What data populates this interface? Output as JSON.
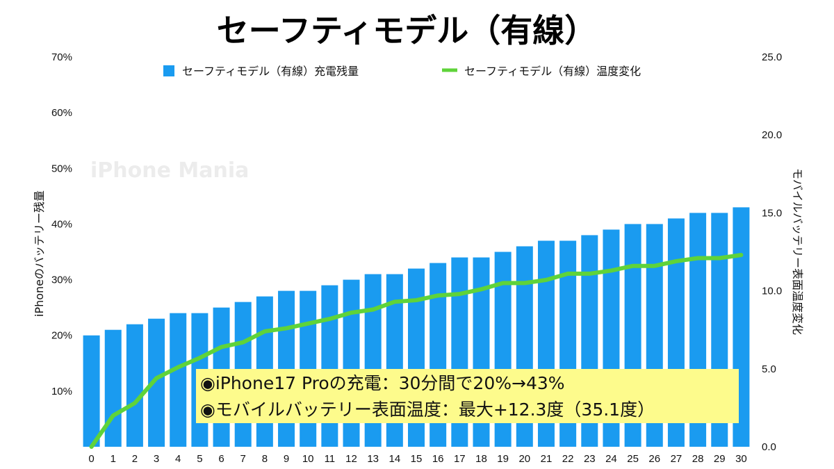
{
  "chart_data": {
    "type": "bar+line",
    "title": "セーフティモデル（有線）",
    "categories": [
      "0",
      "1",
      "2",
      "3",
      "4",
      "5",
      "6",
      "7",
      "8",
      "9",
      "10",
      "11",
      "12",
      "13",
      "14",
      "15",
      "16",
      "17",
      "18",
      "19",
      "20",
      "21",
      "22",
      "23",
      "24",
      "25",
      "26",
      "27",
      "28",
      "29",
      "30"
    ],
    "series": [
      {
        "name": "セーフティモデル（有線）充電残量",
        "type": "bar",
        "axis": "left",
        "color": "#1a9bf0",
        "values": [
          20,
          21,
          22,
          23,
          24,
          24,
          25,
          26,
          27,
          28,
          28,
          29,
          30,
          31,
          31,
          32,
          33,
          34,
          34,
          35,
          36,
          37,
          37,
          38,
          39,
          40,
          40,
          41,
          42,
          42,
          43
        ]
      },
      {
        "name": "セーフティモデル（有線）温度変化",
        "type": "line",
        "axis": "right",
        "color": "#5fd33a",
        "values": [
          0.0,
          2.0,
          2.8,
          4.4,
          5.1,
          5.7,
          6.4,
          6.7,
          7.4,
          7.6,
          7.9,
          8.2,
          8.6,
          8.8,
          9.3,
          9.4,
          9.7,
          9.8,
          10.1,
          10.5,
          10.5,
          10.7,
          11.1,
          11.1,
          11.3,
          11.6,
          11.6,
          11.9,
          12.1,
          12.1,
          12.3
        ]
      }
    ],
    "y_left": {
      "label": "iPhoneのバッテリー残量",
      "range": [
        0,
        70
      ],
      "ticks": [
        10,
        20,
        30,
        40,
        50,
        60,
        70
      ],
      "tick_labels": [
        "10%",
        "20%",
        "30%",
        "40%",
        "50%",
        "60%",
        "70%"
      ]
    },
    "y_right": {
      "label": "モバイルバッテリー表面温度変化",
      "range": [
        0,
        25
      ],
      "ticks": [
        0,
        5,
        10,
        15,
        20,
        25
      ],
      "tick_labels": [
        "0.0",
        "5.0",
        "10.0",
        "15.0",
        "20.0",
        "25.0"
      ]
    },
    "legend_position": "top",
    "watermark": "iPhone Mania",
    "annotations": [
      "◉iPhone17 Proの充電：30分間で20%→43%",
      "◉モバイルバッテリー表面温度：最大+12.3度（35.1度）"
    ],
    "annotation_bg": "#fdfb8c"
  }
}
